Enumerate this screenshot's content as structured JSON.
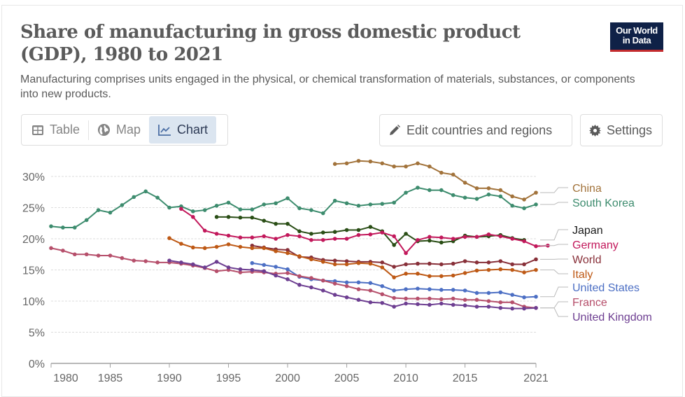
{
  "header": {
    "title": "Share of manufacturing in gross domestic product (GDP), 1980 to 2021",
    "subtitle": "Manufacturing comprises units engaged in the physical, or chemical transformation of materials, substances, or components into new products.",
    "logo_line1": "Our World",
    "logo_line2": "in Data"
  },
  "tabs": [
    {
      "label": "Table",
      "icon": "table-icon",
      "active": false
    },
    {
      "label": "Map",
      "icon": "globe-icon",
      "active": false
    },
    {
      "label": "Chart",
      "icon": "line-chart-icon",
      "active": true
    }
  ],
  "toolbar": {
    "edit_label": "Edit countries and regions",
    "settings_label": "Settings"
  },
  "colors": {
    "logo_bg": "#0f2147",
    "logo_accent": "#c32b2e",
    "active_tab_bg": "#dbe5f0"
  },
  "chart_data": {
    "type": "line",
    "title": "Share of manufacturing in gross domestic product (GDP), 1980 to 2021",
    "xlabel": "",
    "ylabel": "",
    "xlim": [
      1980,
      2021
    ],
    "ylim": [
      0,
      30
    ],
    "x_ticks": [
      "1980",
      "1985",
      "1990",
      "1995",
      "2000",
      "2005",
      "2010",
      "2015",
      "2021"
    ],
    "x_tick_values": [
      1980,
      1985,
      1990,
      1995,
      2000,
      2005,
      2010,
      2015,
      2021
    ],
    "y_ticks": [
      "0%",
      "5%",
      "10%",
      "15%",
      "20%",
      "25%",
      "30%"
    ],
    "y_tick_values": [
      0,
      5,
      10,
      15,
      20,
      25,
      30
    ],
    "grid": true,
    "legend": "right (inline labels)",
    "series": [
      {
        "name": "China",
        "color": "#a2733b",
        "start": 2004,
        "values": [
          32.0,
          32.1,
          32.5,
          32.4,
          32.1,
          31.6,
          31.6,
          32.1,
          31.6,
          30.6,
          30.3,
          29.0,
          28.1,
          28.1,
          27.8,
          26.8,
          26.3,
          27.4
        ]
      },
      {
        "name": "South Korea",
        "color": "#3d8c6e",
        "start": 1980,
        "values": [
          22.0,
          21.8,
          21.8,
          23.0,
          24.6,
          24.2,
          25.4,
          26.7,
          27.6,
          26.6,
          25.0,
          25.2,
          24.4,
          24.6,
          25.3,
          25.8,
          24.7,
          24.7,
          25.5,
          25.7,
          26.5,
          24.9,
          24.6,
          24.1,
          26.1,
          25.7,
          25.3,
          25.5,
          25.6,
          25.8,
          27.4,
          28.2,
          27.8,
          27.8,
          27.0,
          26.6,
          26.4,
          27.1,
          26.8,
          25.3,
          24.9,
          25.5
        ]
      },
      {
        "name": "Japan",
        "color": "#2a4e16",
        "start": 1994,
        "values": [
          23.5,
          23.5,
          23.4,
          23.4,
          22.9,
          22.4,
          22.4,
          21.2,
          20.8,
          21.0,
          21.1,
          21.4,
          21.4,
          21.9,
          21.2,
          19.0,
          20.8,
          19.6,
          19.7,
          19.4,
          19.6,
          20.5,
          20.3,
          20.4,
          20.6,
          20.1,
          19.8
        ]
      },
      {
        "name": "Germany",
        "color": "#c2185b",
        "start": 1991,
        "values": [
          24.8,
          23.5,
          21.3,
          20.8,
          20.5,
          20.2,
          20.2,
          20.4,
          20.0,
          20.6,
          20.4,
          19.8,
          19.8,
          20.0,
          20.0,
          20.6,
          20.7,
          21.0,
          20.4,
          17.7,
          19.8,
          20.3,
          20.2,
          20.0,
          20.3,
          20.3,
          20.7,
          20.4,
          20.0,
          19.6,
          18.8,
          18.9
        ]
      },
      {
        "name": "World",
        "color": "#883039",
        "start": 1997,
        "values": [
          18.9,
          18.6,
          18.3,
          18.2,
          17.1,
          17.0,
          16.6,
          16.5,
          16.4,
          16.3,
          16.3,
          16.2,
          15.5,
          15.9,
          16.0,
          16.0,
          15.9,
          16.0,
          16.4,
          16.2,
          16.2,
          16.4,
          15.9,
          15.9,
          16.7
        ]
      },
      {
        "name": "Italy",
        "color": "#be5915",
        "start": 1990,
        "values": [
          20.1,
          19.2,
          18.6,
          18.5,
          18.7,
          19.1,
          18.7,
          18.5,
          18.5,
          18.0,
          17.7,
          17.2,
          16.7,
          16.3,
          15.9,
          15.9,
          16.1,
          16.0,
          15.4,
          13.8,
          14.4,
          14.4,
          14.0,
          14.0,
          14.1,
          14.5,
          14.9,
          15.0,
          15.1,
          15.0,
          14.6,
          15.0
        ]
      },
      {
        "name": "United States",
        "color": "#4c6fc4",
        "start": 1997,
        "values": [
          16.1,
          15.8,
          15.5,
          15.1,
          13.9,
          13.5,
          13.3,
          13.2,
          13.0,
          13.0,
          12.9,
          12.4,
          11.7,
          11.9,
          12.0,
          11.9,
          11.8,
          11.8,
          11.7,
          11.3,
          11.3,
          11.4,
          11.0,
          10.6,
          10.7
        ]
      },
      {
        "name": "France",
        "color": "#b64f6b",
        "start": 1980,
        "values": [
          18.5,
          18.1,
          17.5,
          17.5,
          17.3,
          17.3,
          16.9,
          16.5,
          16.4,
          16.2,
          16.2,
          16.0,
          15.7,
          15.3,
          14.8,
          15.0,
          14.6,
          14.7,
          14.6,
          14.4,
          14.5,
          14.0,
          13.7,
          13.3,
          12.8,
          12.4,
          11.9,
          11.7,
          11.1,
          10.5,
          10.4,
          10.4,
          10.4,
          10.3,
          10.4,
          10.2,
          10.2,
          10.0,
          9.8,
          9.8,
          9.1,
          8.9
        ]
      },
      {
        "name": "United Kingdom",
        "color": "#6d3e91",
        "start": 1990,
        "values": [
          16.5,
          16.2,
          15.9,
          15.4,
          16.3,
          15.4,
          15.1,
          15.0,
          14.8,
          14.1,
          13.5,
          12.6,
          12.2,
          11.7,
          11.0,
          10.6,
          10.2,
          9.8,
          9.7,
          9.1,
          9.6,
          9.5,
          9.4,
          9.6,
          9.4,
          9.3,
          9.1,
          9.1,
          8.9,
          8.8,
          8.8,
          8.9
        ]
      }
    ],
    "legend_labels": [
      "China",
      "South Korea",
      "Japan",
      "Germany",
      "World",
      "Italy",
      "United States",
      "France",
      "United Kingdom"
    ]
  }
}
